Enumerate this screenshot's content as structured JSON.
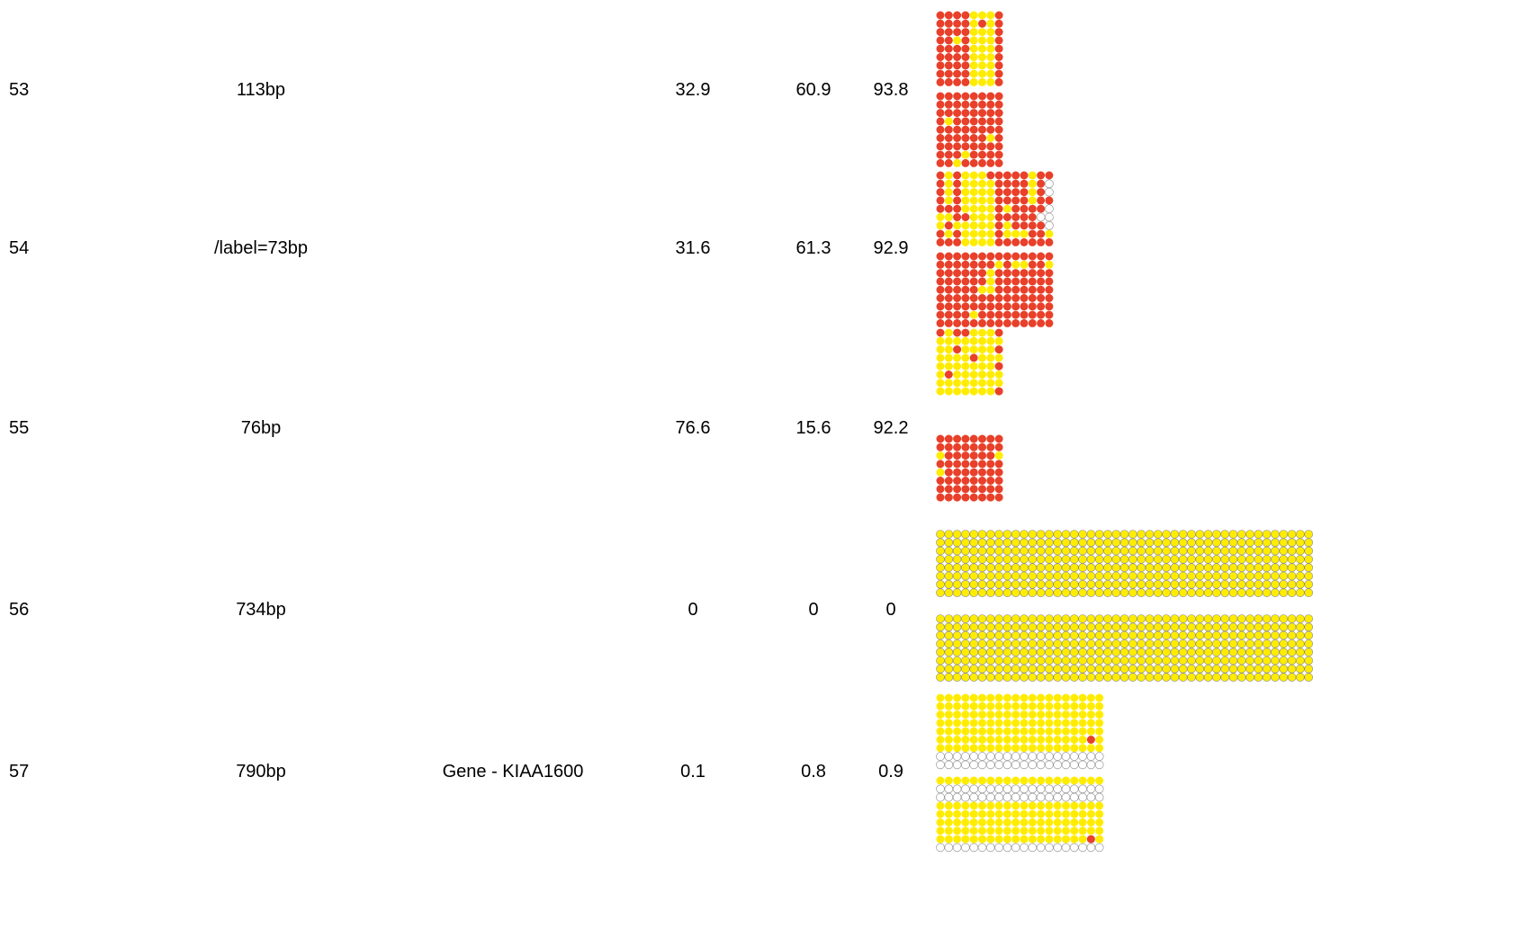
{
  "colors": {
    "methylated": "#e8402a",
    "unmethylated": "#ffec00",
    "missing": "#ffffff",
    "outline": "#888888"
  },
  "rows": [
    {
      "id": "53",
      "size": "113bp",
      "gene": "",
      "v1": "32.9",
      "v2": "60.9",
      "v3": "93.8",
      "blocks": [
        {
          "cols": 8,
          "rows": 9,
          "m": [
            "RRRRYYYR",
            "RRRRYRYR",
            "RRRRYYYR",
            "RRYRYYYR",
            "RRRRYYYR",
            "RRRRYYYR",
            "RRRRYYYR",
            "RRRRYYYR",
            "RRRRYYYR"
          ]
        },
        {
          "cols": 8,
          "rows": 9,
          "m": [
            "RRRRRRRR",
            "RRRRRRRR",
            "RRRRRRRR",
            "RYRRRRRR",
            "RRRRRRRR",
            "RRRRRRYR",
            "RRRRRRRR",
            "RRRYRRRR",
            "RRYRRRRR"
          ]
        }
      ]
    },
    {
      "id": "54",
      "size": "/label=73bp",
      "gene": "",
      "v1": "31.6",
      "v2": "61.3",
      "v3": "92.9",
      "blocks": [
        {
          "cols": 14,
          "rows": 9,
          "m": [
            "RYRYYYRRRRRYRR",
            "RYRYYYYRRRRYRW",
            "RYRYYYYRRRRYRW",
            "RYRYYYYRRRRYRR",
            "RRRYYYYRYRRRRW",
            "YYRRYYYRRRRRWW",
            "YRYYYYYRYRRRRW",
            "RYRYYYYRYYYRRY",
            "RRRYYYYRRRRRRR"
          ]
        },
        {
          "cols": 14,
          "rows": 9,
          "m": [
            "RRRRRRRRRRRRRR",
            "RRRRRRRYRYYRRY",
            "RRRRRRYRRRRRRR",
            "RRRRRRYRRRRRRR",
            "RRRRRYYRRRRRRR",
            "RRRRRRRRRRRRRR",
            "RRRRRRRRRRRRRR",
            "RRRRYRRRRRRRRR",
            "RRRRRRRRRRRRRR"
          ]
        }
      ]
    },
    {
      "id": "55",
      "size": "76bp",
      "gene": "",
      "v1": "76.6",
      "v2": "15.6",
      "v3": "92.2",
      "blocks": [
        {
          "cols": 8,
          "rows": 8,
          "m": [
            "RYRRYYYR",
            "YYYYYYYY",
            "YYRYYYYR",
            "YYYYRYYY",
            "YYYYYYYR",
            "YRYYYYYY",
            "YYYYYYYY",
            "YYYYYYYR"
          ]
        },
        {
          "cols": 8,
          "rows": 8,
          "m": [
            "RRRRRRRR",
            "RRRRRRRR",
            "YRRRRRRY",
            "RRRRRRRR",
            "YRRRRRRR",
            "RRRRRRRR",
            "RRRRRRRR",
            "RRRRRRRR"
          ]
        }
      ]
    },
    {
      "id": "56",
      "size": "734bp",
      "gene": "",
      "v1": "0",
      "v2": "0",
      "v3": "0",
      "blocks": [
        {
          "cols": 45,
          "rows": 8,
          "fill": "Y"
        },
        {
          "cols": 45,
          "rows": 8,
          "fill": "Y"
        }
      ]
    },
    {
      "id": "57",
      "size": "790bp",
      "gene": "Gene - KIAA1600",
      "v1": "0.1",
      "v2": "0.8",
      "v3": "0.9",
      "blocks": [
        {
          "cols": 20,
          "rows": 7,
          "m": [
            "YYYYYYYYYYYYYYYYYYYY",
            "YYYYYYYYYYYYYYYYYYYY",
            "YYYYYYYYYYYYYYYYYYYY",
            "YYYYYYYYYYYYYYYYYYYY",
            "YYYYYYYYYYYYYYYYYYYY",
            "YYYYYYYYYYYYYYYYYYRY",
            "YYYYYYYYYYYYYYYYYYYY"
          ],
          "tail": 2
        },
        {
          "cols": 20,
          "rows": 9,
          "m": [
            "YYYYYYYYYYYYYYYYYYYY",
            "WWWWWWWWWWWWWWWWWWWW",
            "WWWWWWWWWWWWWWWWWWWW",
            "YYYYYYYYYYYYYYYYYYYY",
            "YYYYYYYYYYYYYYYYYYYY",
            "YYYYYYYYYYYYYYYYYYYY",
            "YYYYYYYYYYYYYYYYYYYY",
            "YYYYYYYYYYYYYYYYYYRY",
            "WWWWWWWWWWWWWWWWWWWW"
          ]
        }
      ]
    }
  ]
}
